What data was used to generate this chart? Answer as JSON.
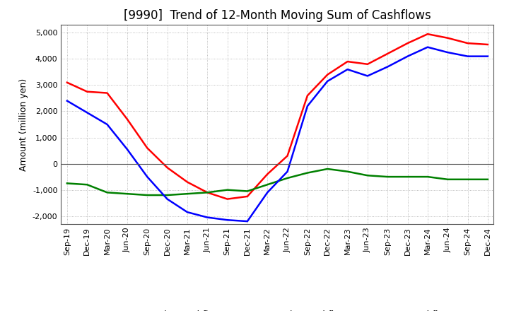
{
  "title": "[9990]  Trend of 12-Month Moving Sum of Cashflows",
  "ylabel": "Amount (million yen)",
  "ylim": [
    -2300,
    5300
  ],
  "yticks": [
    -2000,
    -1000,
    0,
    1000,
    2000,
    3000,
    4000,
    5000
  ],
  "x_labels": [
    "Sep-19",
    "Dec-19",
    "Mar-20",
    "Jun-20",
    "Sep-20",
    "Dec-20",
    "Mar-21",
    "Jun-21",
    "Sep-21",
    "Dec-21",
    "Mar-22",
    "Jun-22",
    "Sep-22",
    "Dec-22",
    "Mar-23",
    "Jun-23",
    "Sep-23",
    "Dec-23",
    "Mar-24",
    "Jun-24",
    "Sep-24",
    "Dec-24"
  ],
  "operating": [
    3100,
    2750,
    2700,
    1700,
    600,
    -150,
    -700,
    -1100,
    -1350,
    -1250,
    -400,
    300,
    2600,
    3400,
    3900,
    3800,
    4200,
    4600,
    4950,
    4800,
    4600,
    4550
  ],
  "investing": [
    -750,
    -800,
    -1100,
    -1150,
    -1200,
    -1200,
    -1150,
    -1100,
    -1000,
    -1050,
    -800,
    -550,
    -350,
    -200,
    -300,
    -450,
    -500,
    -500,
    -500,
    -600,
    -600,
    -600
  ],
  "free": [
    2400,
    1950,
    1500,
    550,
    -500,
    -1350,
    -1850,
    -2050,
    -2150,
    -2200,
    -1100,
    -300,
    2200,
    3150,
    3600,
    3350,
    3700,
    4100,
    4450,
    4250,
    4100,
    4100
  ],
  "colors": {
    "operating": "#ff0000",
    "investing": "#008000",
    "free": "#0000ff"
  },
  "background_color": "#ffffff",
  "plot_bg_color": "#ffffff",
  "grid_color": "#aaaaaa",
  "title_fontsize": 12,
  "label_fontsize": 9,
  "tick_fontsize": 8
}
